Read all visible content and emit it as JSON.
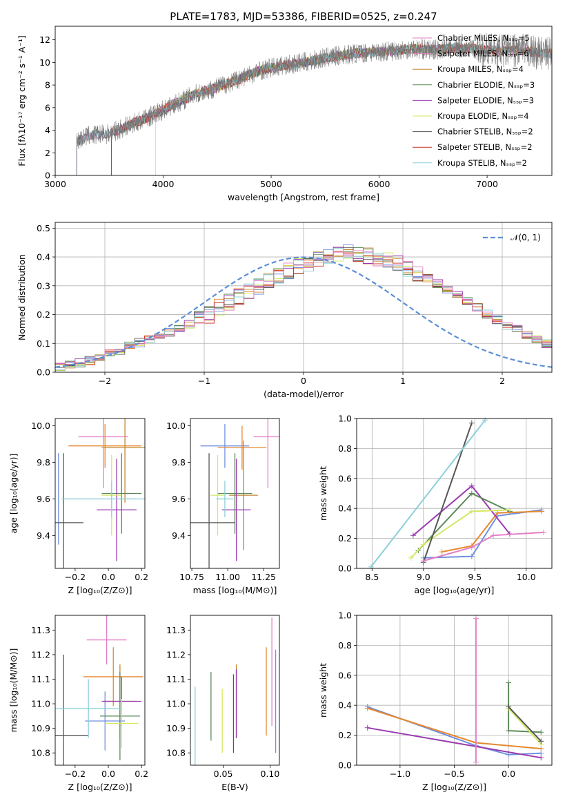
{
  "title": "PLATE=1783, MJD=53386, FIBERID=0525, z=0.247",
  "colors": {
    "series": [
      "#6f8fe0",
      "#e6882e",
      "#c0862b",
      "#5a8a58",
      "#9a3bb0",
      "#d4e860",
      "#555555",
      "#c8302a",
      "#8ccfd8",
      "#e27ec6"
    ]
  },
  "chart_data": [
    {
      "id": "spectrum",
      "type": "line",
      "xlabel": "wavelength [Angstrom, rest frame]",
      "ylabel": "Flux [fλ10⁻¹⁷ erg cm⁻² s⁻¹ A⁻¹]",
      "xlim": [
        3000,
        7600
      ],
      "ylim": [
        0,
        13.2
      ],
      "xticks": [
        3000,
        4000,
        5000,
        6000,
        7000
      ],
      "yticks": [
        0,
        2,
        4,
        6,
        8,
        10,
        12
      ],
      "grid": false,
      "legend_position": "top-right",
      "legend": [
        "Chabrier MILES, Nₛₛₚ=5",
        "Salpeter MILES, Nₛₛₚ=6",
        "Kroupa MILES, Nₛₛₚ=4",
        "Chabrier ELODIE, Nₛₛₚ=3",
        "Salpeter ELODIE, Nₛₛₚ=3",
        "Kroupa ELODIE, Nₛₛₚ=4",
        "Chabrier STELIB, Nₛₛₚ=2",
        "Salpeter STELIB, Nₛₛₚ=2",
        "Kroupa STELIB, Nₛₛₚ=2"
      ],
      "legend_colors": [
        "#e27ec6",
        "#e27ec6",
        "#c0862b",
        "#5a8a58",
        "#9a3bb0",
        "#d4e860",
        "#555555",
        "#c8302a",
        "#8ccfd8"
      ],
      "data_wave": [
        3200,
        3300,
        3500,
        3700,
        3900,
        4100,
        4300,
        4500,
        4700,
        4900,
        5100,
        5300,
        5500,
        5700,
        5900,
        6100,
        6300,
        6500,
        6700,
        6900,
        7100,
        7300,
        7500
      ],
      "data_flux": [
        3.0,
        3.5,
        3.7,
        4.5,
        5.3,
        6.3,
        7.2,
        7.8,
        8.5,
        9.3,
        9.7,
        10.0,
        10.4,
        10.7,
        10.9,
        11.0,
        11.2,
        11.1,
        11.3,
        11.2,
        11.0,
        11.1,
        10.8
      ],
      "model_starts": [
        3200,
        3200,
        3520,
        3520,
        3520,
        3930,
        3200,
        3520,
        3200
      ],
      "model_ends": [
        7600,
        7600,
        7600,
        6800,
        6800,
        6800,
        7600,
        7600,
        7600
      ]
    },
    {
      "id": "residuals",
      "type": "histogram",
      "xlabel": "(data-model)/error",
      "ylabel": "Normed distribution",
      "xlim": [
        -2.5,
        2.5
      ],
      "ylim": [
        0,
        0.52
      ],
      "xticks": [
        -2,
        -1,
        0,
        1,
        2
      ],
      "yticks": [
        0.0,
        0.1,
        0.2,
        0.3,
        0.4,
        0.5
      ],
      "grid": true,
      "legend_position": "top-right",
      "legend": [
        "𝒩(0, 1)"
      ],
      "bin_start": -2.5,
      "bin_width": 0.1,
      "bin_values": [
        0.018,
        0.025,
        0.032,
        0.04,
        0.052,
        0.064,
        0.076,
        0.09,
        0.103,
        0.115,
        0.126,
        0.138,
        0.152,
        0.168,
        0.183,
        0.2,
        0.224,
        0.244,
        0.262,
        0.28,
        0.3,
        0.317,
        0.334,
        0.352,
        0.368,
        0.381,
        0.392,
        0.401,
        0.408,
        0.412,
        0.41,
        0.405,
        0.398,
        0.388,
        0.375,
        0.36,
        0.344,
        0.326,
        0.308,
        0.289,
        0.27,
        0.25,
        0.226,
        0.201,
        0.181,
        0.164,
        0.148,
        0.131,
        0.115,
        0.1
      ],
      "fit": "normal(0,1)"
    },
    {
      "id": "age_vs_Z",
      "type": "scatter",
      "xlabel": "Z [log₁₀(Z/Z⊙)]",
      "ylabel": "age  [log₁₀(age/yr)]",
      "xlim": [
        -0.32,
        0.22
      ],
      "ylim": [
        9.22,
        10.04
      ],
      "xticks": [
        -0.2,
        0.0,
        0.2
      ],
      "yticks": [
        9.4,
        9.6,
        9.8,
        10.0
      ],
      "x": [
        -0.3,
        -0.02,
        0.1,
        0.08,
        0.05,
        0.02,
        -0.27,
        -0.03,
        0.02
      ],
      "y": [
        9.6,
        9.89,
        9.88,
        9.63,
        9.54,
        9.62,
        9.47,
        9.94,
        9.6
      ],
      "xerr": [
        0.0,
        0.22,
        0.14,
        0.12,
        0.12,
        0.06,
        0.12,
        0.15,
        0.3
      ],
      "yerr": [
        0.25,
        0.12,
        0.3,
        0.22,
        0.28,
        0.22,
        0.38,
        0.28,
        0.1
      ]
    },
    {
      "id": "age_vs_mass",
      "type": "scatter",
      "xlabel": "mass [log₁₀(M/M⊙)]",
      "ylabel": "",
      "xlim": [
        10.74,
        11.36
      ],
      "ylim": [
        9.22,
        10.04
      ],
      "xticks": [
        10.75,
        11.0,
        11.25
      ],
      "yticks": [
        9.4,
        9.6,
        9.8,
        10.0
      ],
      "x": [
        10.98,
        11.1,
        11.11,
        11.05,
        11.06,
        10.93,
        10.87,
        11.28,
        10.98
      ],
      "y": [
        9.89,
        9.88,
        9.62,
        9.63,
        9.54,
        9.62,
        9.47,
        9.94,
        9.6
      ],
      "xerr": [
        0.17,
        0.17,
        0.1,
        0.12,
        0.1,
        0.05,
        0.18,
        0.1,
        0.06
      ],
      "yerr": [
        0.12,
        0.12,
        0.3,
        0.22,
        0.28,
        0.22,
        0.38,
        0.28,
        0.1
      ]
    },
    {
      "id": "weight_vs_age",
      "type": "line",
      "xlabel": "age  [log₁₀(age/yr)]",
      "ylabel": "mass weight",
      "xlim": [
        8.35,
        10.25
      ],
      "ylim": [
        0.0,
        1.0
      ],
      "xticks": [
        8.5,
        9.0,
        9.5,
        10.0
      ],
      "yticks": [
        0.0,
        0.2,
        0.4,
        0.6,
        0.8,
        1.0
      ],
      "grid": true,
      "series": [
        {
          "x": [
            9.0,
            9.47,
            9.72,
            10.15
          ],
          "y": [
            0.07,
            0.08,
            0.35,
            0.39
          ]
        },
        {
          "x": [
            9.18,
            9.47,
            9.72,
            10.15
          ],
          "y": [
            0.11,
            0.15,
            0.37,
            0.38
          ]
        },
        {
          "x": [
            8.9,
            9.47,
            9.84
          ],
          "y": [
            0.22,
            0.55,
            0.23
          ]
        },
        {
          "x": [
            8.95,
            9.47,
            9.84
          ],
          "y": [
            0.12,
            0.5,
            0.38
          ]
        },
        {
          "x": [
            8.88,
            9.0,
            9.47,
            9.84
          ],
          "y": [
            0.07,
            0.16,
            0.38,
            0.39
          ]
        },
        {
          "x": [
            9.0,
            9.47
          ],
          "y": [
            0.04,
            0.97
          ]
        },
        {
          "x": [
            9.0,
            9.47,
            9.68,
            10.17
          ],
          "y": [
            0.05,
            0.14,
            0.22,
            0.24
          ]
        },
        {
          "x": [
            8.49,
            9.6
          ],
          "y": [
            0.01,
            0.99
          ]
        }
      ]
    },
    {
      "id": "mass_vs_Z",
      "type": "scatter",
      "xlabel": "Z [log₁₀(Z/Z⊙)]",
      "ylabel": "mass [log₁₀(M/M⊙)]",
      "xlim": [
        -0.32,
        0.22
      ],
      "ylim": [
        10.75,
        11.36
      ],
      "xticks": [
        -0.2,
        0.0,
        0.2
      ],
      "yticks": [
        10.8,
        10.9,
        11.0,
        11.1,
        11.2,
        11.3
      ],
      "x": [
        -0.02,
        0.03,
        0.07,
        0.07,
        0.08,
        0.08,
        -0.27,
        -0.01,
        -0.12
      ],
      "y": [
        10.93,
        11.11,
        11.01,
        10.95,
        11.01,
        10.92,
        10.87,
        11.26,
        10.98
      ],
      "xerr": [
        0.12,
        0.18,
        0.1,
        0.12,
        0.12,
        0.1,
        0.15,
        0.12,
        0.2
      ],
      "yerr": [
        0.12,
        0.12,
        0.15,
        0.18,
        0.1,
        0.1,
        0.33,
        0.1,
        0.12
      ]
    },
    {
      "id": "mass_vs_ebv",
      "type": "scatter",
      "xlabel": "E(B-V)",
      "ylabel": "",
      "xlim": [
        0.015,
        0.11
      ],
      "ylim": [
        10.75,
        11.36
      ],
      "xticks": [
        0.05,
        0.1
      ],
      "yticks": [
        10.8,
        10.9,
        11.0,
        11.1,
        11.2,
        11.3
      ],
      "x": [
        0.106,
        0.096,
        0.064,
        0.037,
        0.064,
        0.049,
        0.061,
        0.102,
        0.02
      ],
      "y": [
        11.01,
        11.05,
        11.01,
        10.99,
        11.0,
        10.93,
        10.96,
        11.13,
        10.9
      ],
      "yerr": [
        0.21,
        0.18,
        0.15,
        0.14,
        0.14,
        0.13,
        0.16,
        0.22,
        0.17
      ]
    },
    {
      "id": "weight_vs_Z",
      "type": "line",
      "xlabel": "Z [log₁₀(Z/Z⊙)]",
      "ylabel": "mass weight",
      "xlim": [
        -1.4,
        0.4
      ],
      "ylim": [
        0.0,
        1.0
      ],
      "xticks": [
        -1.0,
        -0.5,
        0.0
      ],
      "yticks": [
        0.0,
        0.2,
        0.4,
        0.6,
        0.8,
        1.0
      ],
      "grid": true,
      "series": [
        {
          "x": [
            -1.3,
            -0.3,
            0.0,
            0.3
          ],
          "y": [
            0.39,
            0.13,
            0.07,
            0.08
          ]
        },
        {
          "x": [
            -1.3,
            -0.3,
            0.3
          ],
          "y": [
            0.38,
            0.15,
            0.11
          ]
        },
        {
          "x": [
            -1.3,
            0.3
          ],
          "y": [
            0.25,
            0.05
          ]
        },
        {
          "x": [
            0.0,
            0.0,
            0.3
          ],
          "y": [
            0.55,
            0.23,
            0.22
          ]
        },
        {
          "x": [
            0.0,
            0.3
          ],
          "y": [
            0.38,
            0.14
          ]
        },
        {
          "x": [
            0.0,
            0.3
          ],
          "y": [
            0.39,
            0.16
          ]
        },
        {
          "x": [
            -0.3,
            -0.3
          ],
          "y": [
            0.02,
            0.98
          ]
        }
      ]
    }
  ]
}
